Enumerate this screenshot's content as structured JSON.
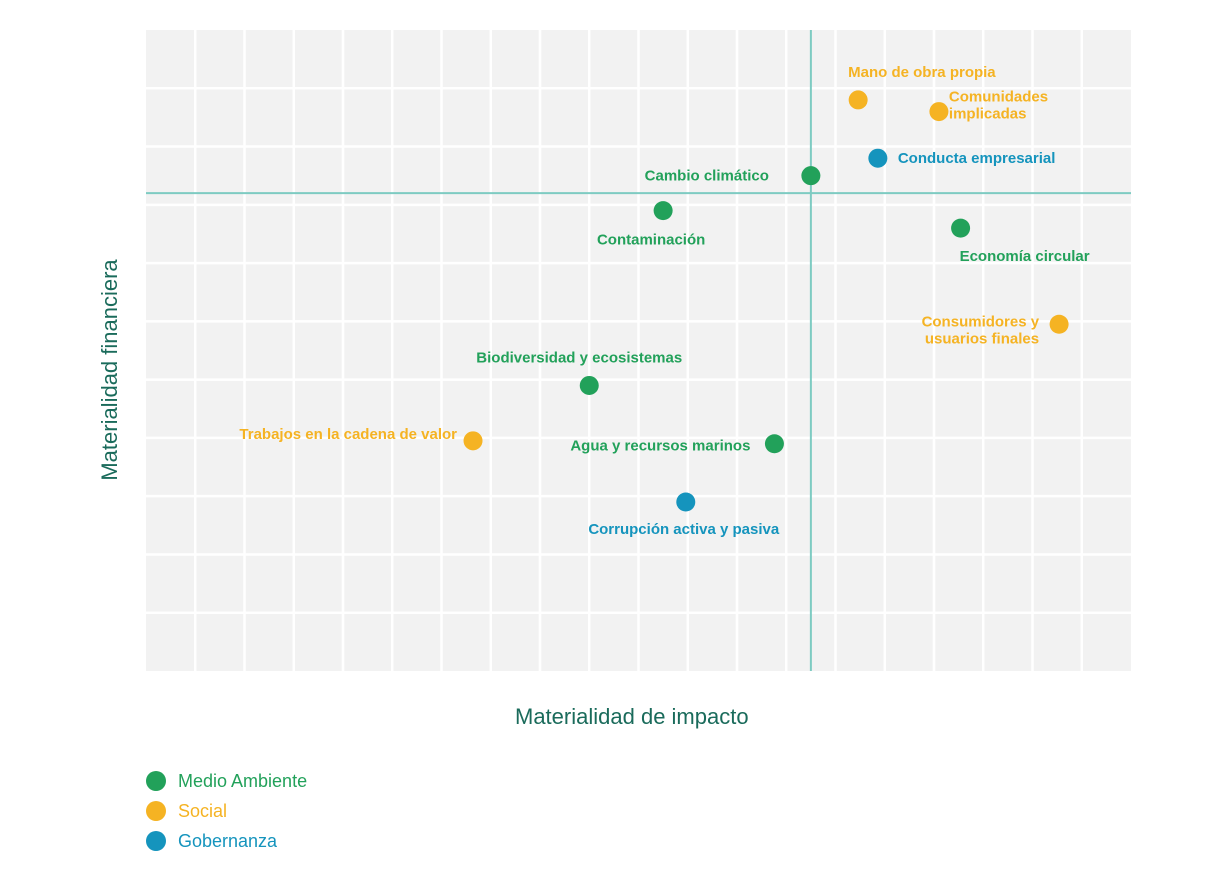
{
  "colors": {
    "environment": "#22a15a",
    "social": "#f5b323",
    "governance": "#1594bd",
    "plot_bg": "#f2f2f2",
    "grid": "#ffffff",
    "threshold": "#7ecbc2",
    "axis_title": "#1a6b5b"
  },
  "chart_data": {
    "type": "scatter",
    "title": "",
    "xlabel": "Materialidad de impacto",
    "ylabel": "Materialidad financiera",
    "xlim": [
      0,
      10
    ],
    "ylim": [
      0,
      11
    ],
    "grid": true,
    "thresholds": {
      "x": 6.75,
      "y": 8.2
    },
    "legend": {
      "position": "bottom-left",
      "entries": [
        {
          "name": "Medio Ambiente",
          "color_key": "environment"
        },
        {
          "name": "Social",
          "color_key": "social"
        },
        {
          "name": "Gobernanza",
          "color_key": "governance"
        }
      ]
    },
    "points": [
      {
        "label": "Mano de obra propia",
        "category": "social",
        "x": 7.23,
        "y": 9.8
      },
      {
        "label": "Comunidades implicadas",
        "category": "social",
        "x": 8.05,
        "y": 9.6
      },
      {
        "label": "Conducta empresarial",
        "category": "governance",
        "x": 7.43,
        "y": 8.8
      },
      {
        "label": "Cambio climático",
        "category": "environment",
        "x": 6.75,
        "y": 8.5
      },
      {
        "label": "Contaminación",
        "category": "environment",
        "x": 5.25,
        "y": 7.9
      },
      {
        "label": "Economía circular",
        "category": "environment",
        "x": 8.27,
        "y": 7.6
      },
      {
        "label": "Consumidores y usuarios finales",
        "category": "social",
        "x": 9.27,
        "y": 5.95
      },
      {
        "label": "Biodiversidad  y ecosistemas",
        "category": "environment",
        "x": 4.5,
        "y": 4.9
      },
      {
        "label": "Trabajos en la cadena de valor",
        "category": "social",
        "x": 3.32,
        "y": 3.95
      },
      {
        "label": "Agua y recursos marinos",
        "category": "environment",
        "x": 6.38,
        "y": 3.9
      },
      {
        "label": "Corrupción activa y pasiva",
        "category": "governance",
        "x": 5.48,
        "y": 2.9
      }
    ]
  }
}
